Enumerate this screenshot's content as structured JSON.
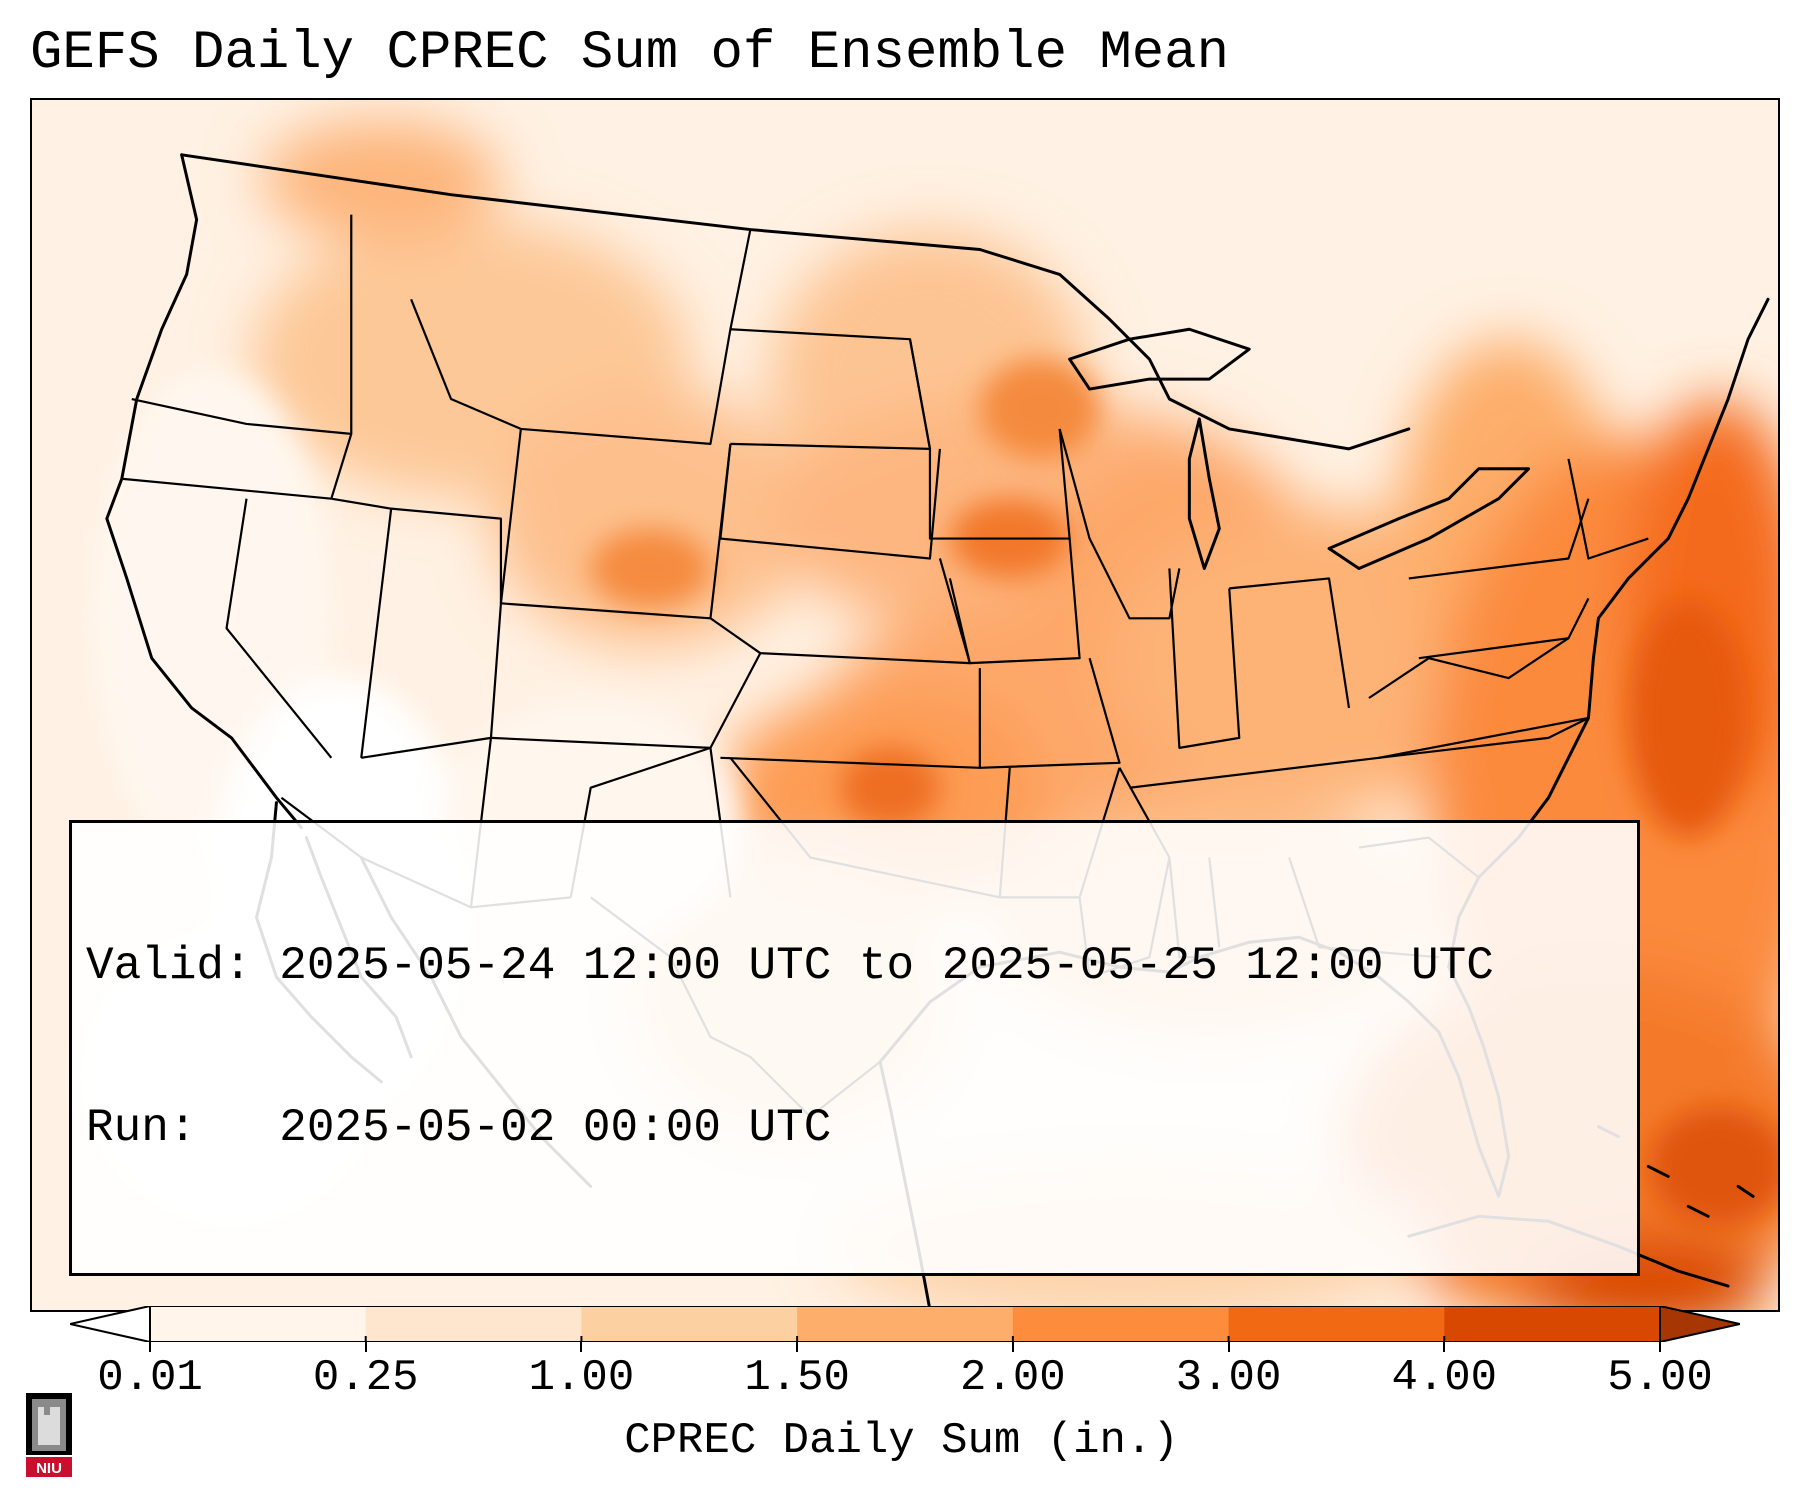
{
  "title": "GEFS Daily CPREC Sum of Ensemble Mean",
  "info": {
    "valid_label": "Valid:",
    "valid_value": "2025-05-24 12:00 UTC to 2025-05-25 12:00 UTC",
    "run_label": "Run:",
    "run_value": "2025-05-02 00:00 UTC"
  },
  "colorbar": {
    "label": "CPREC Daily Sum (in.)",
    "ticks": [
      "0.01",
      "0.25",
      "1.00",
      "1.50",
      "2.00",
      "3.00",
      "4.00",
      "5.00"
    ],
    "colors": [
      "#fff5eb",
      "#fee6ce",
      "#fdd0a2",
      "#fdae6b",
      "#fd8d3c",
      "#f16913",
      "#d94801",
      "#a63603"
    ],
    "extend": "both"
  },
  "logo": {
    "text": "NIU",
    "icon": "niu-logo-icon"
  }
}
